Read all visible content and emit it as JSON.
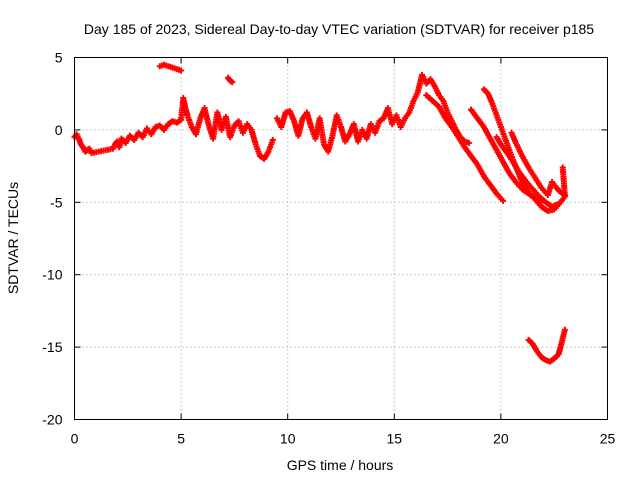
{
  "chart_data": {
    "type": "scatter",
    "title": "Day 185 of 2023, Sidereal Day-to-day VTEC variation (SDTVAR) for receiver p185",
    "xlabel": "GPS time / hours",
    "ylabel": "SDTVAR / TECUs",
    "xlim": [
      0,
      25
    ],
    "ylim": [
      -20,
      5
    ],
    "xticks": [
      0,
      5,
      10,
      15,
      20,
      25
    ],
    "yticks": [
      -20,
      -15,
      -10,
      -5,
      0,
      5
    ],
    "grid": true,
    "marker": "plus",
    "color": "#ff0000",
    "series": [
      {
        "name": "SDTVAR",
        "points": [
          [
            0.0,
            -0.5
          ],
          [
            0.1,
            -0.3
          ],
          [
            0.2,
            -0.6
          ],
          [
            0.3,
            -1.0
          ],
          [
            0.4,
            -1.2
          ],
          [
            0.5,
            -1.5
          ],
          [
            0.6,
            -1.4
          ],
          [
            0.7,
            -1.3
          ],
          [
            0.8,
            -1.6
          ],
          [
            1.8,
            -1.3
          ],
          [
            1.9,
            -1.0
          ],
          [
            2.0,
            -0.8
          ],
          [
            2.1,
            -1.2
          ],
          [
            2.2,
            -0.6
          ],
          [
            2.4,
            -0.9
          ],
          [
            2.6,
            -0.4
          ],
          [
            2.8,
            -0.7
          ],
          [
            3.0,
            -0.2
          ],
          [
            3.2,
            -0.5
          ],
          [
            3.4,
            0.1
          ],
          [
            3.6,
            -0.3
          ],
          [
            3.8,
            0.2
          ],
          [
            4.0,
            0.3
          ],
          [
            4.2,
            0.0
          ],
          [
            4.4,
            0.4
          ],
          [
            4.6,
            0.6
          ],
          [
            4.8,
            0.5
          ],
          [
            5.0,
            0.7
          ],
          [
            5.1,
            2.2
          ],
          [
            5.2,
            1.5
          ],
          [
            5.3,
            1.0
          ],
          [
            5.5,
            0.2
          ],
          [
            5.7,
            -0.3
          ],
          [
            5.9,
            0.8
          ],
          [
            6.1,
            1.5
          ],
          [
            6.3,
            0.3
          ],
          [
            6.5,
            -0.6
          ],
          [
            6.7,
            1.2
          ],
          [
            6.9,
            0.0
          ],
          [
            7.1,
            0.9
          ],
          [
            7.3,
            -0.5
          ],
          [
            7.5,
            0.3
          ],
          [
            7.7,
            0.6
          ],
          [
            7.9,
            -0.2
          ],
          [
            8.1,
            0.4
          ],
          [
            8.3,
            0.0
          ],
          [
            8.5,
            -1.0
          ],
          [
            8.7,
            -1.8
          ],
          [
            8.9,
            -2.0
          ],
          [
            9.1,
            -1.5
          ],
          [
            9.3,
            -0.7
          ],
          [
            4.0,
            4.4
          ],
          [
            4.2,
            4.5
          ],
          [
            4.4,
            4.4
          ],
          [
            4.6,
            4.3
          ],
          [
            4.8,
            4.2
          ],
          [
            5.0,
            4.1
          ],
          [
            7.2,
            3.6
          ],
          [
            7.3,
            3.4
          ],
          [
            7.4,
            3.3
          ],
          [
            9.5,
            0.8
          ],
          [
            9.7,
            0.2
          ],
          [
            9.9,
            1.2
          ],
          [
            10.1,
            1.3
          ],
          [
            10.3,
            0.6
          ],
          [
            10.5,
            -0.4
          ],
          [
            10.7,
            0.8
          ],
          [
            10.9,
            1.2
          ],
          [
            11.1,
            0.2
          ],
          [
            11.3,
            -0.6
          ],
          [
            11.5,
            0.8
          ],
          [
            11.7,
            -1.0
          ],
          [
            11.9,
            -1.5
          ],
          [
            12.1,
            -0.4
          ],
          [
            12.3,
            1.0
          ],
          [
            12.5,
            0.2
          ],
          [
            12.7,
            -0.8
          ],
          [
            12.9,
            -0.3
          ],
          [
            13.1,
            0.4
          ],
          [
            13.3,
            -0.8
          ],
          [
            13.5,
            0.0
          ],
          [
            13.7,
            -0.6
          ],
          [
            13.9,
            0.4
          ],
          [
            14.1,
            -0.2
          ],
          [
            14.3,
            0.6
          ],
          [
            14.5,
            0.8
          ],
          [
            14.7,
            1.5
          ],
          [
            14.9,
            0.4
          ],
          [
            15.1,
            1.0
          ],
          [
            15.3,
            0.2
          ],
          [
            15.5,
            0.8
          ],
          [
            15.7,
            1.2
          ],
          [
            15.9,
            2.0
          ],
          [
            16.1,
            2.6
          ],
          [
            16.3,
            3.8
          ],
          [
            16.5,
            3.2
          ],
          [
            16.7,
            3.5
          ],
          [
            16.9,
            3.0
          ],
          [
            17.1,
            2.4
          ],
          [
            17.3,
            2.0
          ],
          [
            17.5,
            1.2
          ],
          [
            17.7,
            0.6
          ],
          [
            17.9,
            0.0
          ],
          [
            18.1,
            -0.5
          ],
          [
            18.3,
            -0.8
          ],
          [
            18.5,
            -0.9
          ],
          [
            16.5,
            2.4
          ],
          [
            16.8,
            2.0
          ],
          [
            17.1,
            1.6
          ],
          [
            17.4,
            0.8
          ],
          [
            17.7,
            0.2
          ],
          [
            18.0,
            -0.5
          ],
          [
            18.3,
            -1.2
          ],
          [
            18.6,
            -1.8
          ],
          [
            18.9,
            -2.4
          ],
          [
            19.2,
            -3.2
          ],
          [
            19.5,
            -3.8
          ],
          [
            19.8,
            -4.4
          ],
          [
            20.1,
            -4.9
          ],
          [
            18.6,
            1.4
          ],
          [
            18.9,
            0.8
          ],
          [
            19.2,
            0.2
          ],
          [
            19.5,
            -0.6
          ],
          [
            19.8,
            -1.4
          ],
          [
            20.1,
            -2.2
          ],
          [
            20.4,
            -3.0
          ],
          [
            20.7,
            -3.6
          ],
          [
            21.0,
            -4.1
          ],
          [
            21.3,
            -4.4
          ],
          [
            21.6,
            -4.7
          ],
          [
            21.9,
            -4.9
          ],
          [
            19.2,
            2.8
          ],
          [
            19.4,
            2.5
          ],
          [
            19.6,
            1.8
          ],
          [
            19.8,
            1.0
          ],
          [
            20.0,
            0.2
          ],
          [
            20.2,
            -0.6
          ],
          [
            20.4,
            -1.4
          ],
          [
            20.6,
            -2.2
          ],
          [
            20.8,
            -2.9
          ],
          [
            21.0,
            -3.6
          ],
          [
            21.3,
            -4.3
          ],
          [
            21.6,
            -4.8
          ],
          [
            21.9,
            -5.3
          ],
          [
            22.2,
            -5.6
          ],
          [
            22.5,
            -5.5
          ],
          [
            22.8,
            -5.0
          ],
          [
            23.0,
            -4.6
          ],
          [
            19.8,
            -0.5
          ],
          [
            20.0,
            -1.0
          ],
          [
            20.3,
            -1.6
          ],
          [
            20.6,
            -2.3
          ],
          [
            20.9,
            -3.0
          ],
          [
            21.2,
            -3.6
          ],
          [
            21.5,
            -4.1
          ],
          [
            21.8,
            -4.6
          ],
          [
            22.1,
            -5.0
          ],
          [
            22.4,
            -5.3
          ],
          [
            22.7,
            -5.1
          ],
          [
            20.5,
            -0.2
          ],
          [
            20.7,
            -0.9
          ],
          [
            21.0,
            -1.8
          ],
          [
            21.3,
            -2.6
          ],
          [
            21.6,
            -3.3
          ],
          [
            21.9,
            -4.0
          ],
          [
            22.2,
            -4.5
          ],
          [
            22.4,
            -3.6
          ],
          [
            22.6,
            -4.0
          ],
          [
            22.8,
            -4.3
          ],
          [
            23.0,
            -4.5
          ],
          [
            22.9,
            -2.6
          ],
          [
            21.3,
            -14.5
          ],
          [
            21.5,
            -14.8
          ],
          [
            21.7,
            -15.3
          ],
          [
            21.9,
            -15.7
          ],
          [
            22.1,
            -15.9
          ],
          [
            22.3,
            -16.0
          ],
          [
            22.5,
            -15.8
          ],
          [
            22.7,
            -15.5
          ],
          [
            22.8,
            -15.0
          ],
          [
            22.9,
            -14.4
          ],
          [
            23.0,
            -13.8
          ]
        ]
      }
    ]
  }
}
